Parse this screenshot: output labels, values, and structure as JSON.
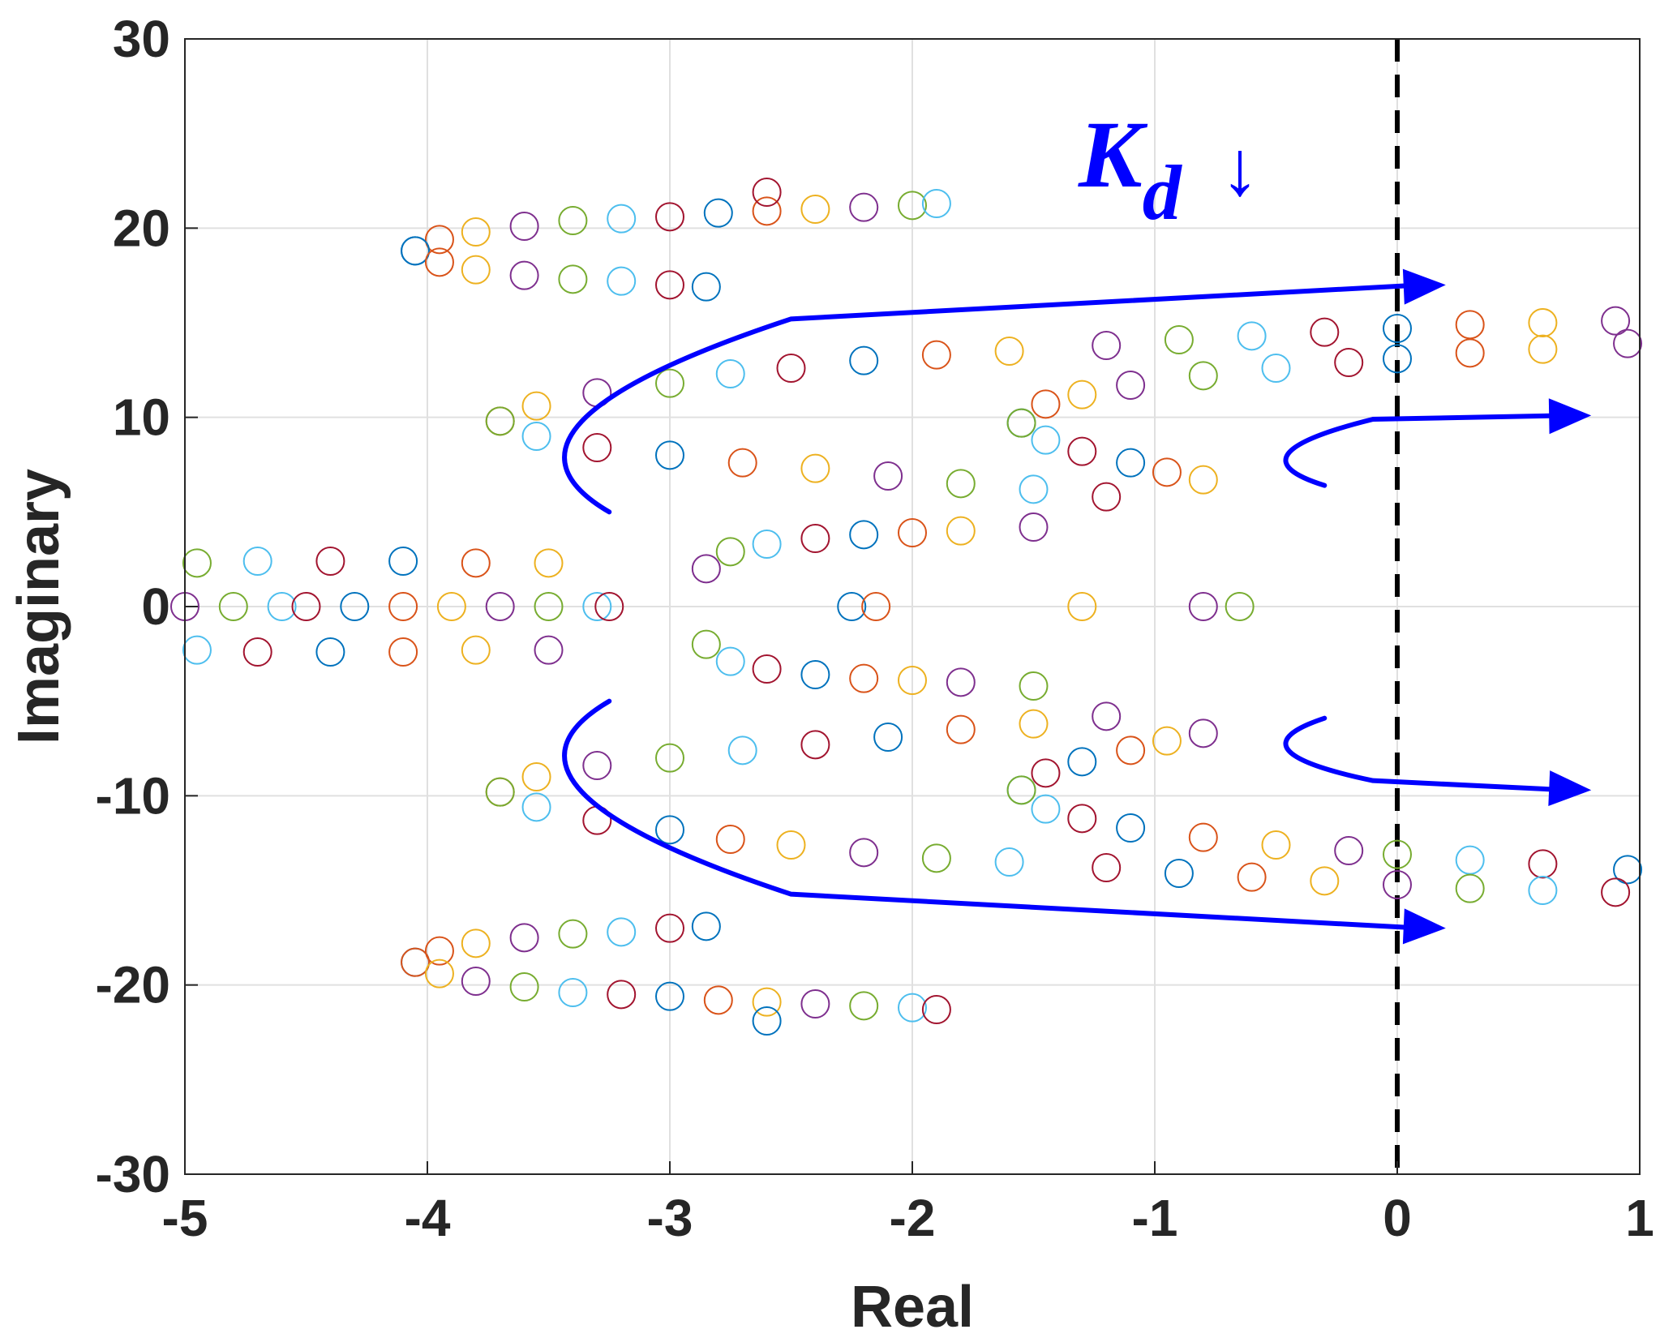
{
  "chart_data": {
    "type": "scatter",
    "title": "",
    "xlabel": "Real",
    "ylabel": "Imaginary",
    "xlim": [
      -5,
      1
    ],
    "ylim": [
      -30,
      30
    ],
    "xticks": [
      -5,
      -4,
      -3,
      -2,
      -1,
      0,
      1
    ],
    "xtick_labels": [
      "-5",
      "-4",
      "-3",
      "-2",
      "-1",
      "0",
      "1"
    ],
    "yticks": [
      -30,
      -20,
      -10,
      0,
      10,
      20,
      30
    ],
    "ytick_labels": [
      "-30",
      "-20",
      "-10",
      "0",
      "10",
      "20",
      "30"
    ],
    "grid": true,
    "legend": "none",
    "marker": "open-circle",
    "color_cycle": [
      "#0072BD",
      "#D95319",
      "#EDB120",
      "#7E2F8E",
      "#77AC30",
      "#4DBEEE",
      "#A2142F"
    ],
    "stability_boundary": {
      "x": 0,
      "style": "dashed",
      "color": "#000000"
    },
    "annotation": {
      "symbol": "K",
      "subscript": "d",
      "arrow": "↓",
      "color": "#0000ff"
    },
    "direction_arrows": {
      "color": "#0000ff",
      "paths": [
        {
          "points": [
            [
              -3.25,
              5
            ],
            [
              -3.85,
              9.5
            ],
            [
              -2.5,
              15.2
            ],
            [
              -0.5,
              16.6
            ],
            [
              0.2,
              17
            ]
          ]
        },
        {
          "points": [
            [
              -0.3,
              6.4
            ],
            [
              -0.7,
              8
            ],
            [
              -0.1,
              9.9
            ],
            [
              0.8,
              10.1
            ]
          ]
        },
        {
          "points": [
            [
              -3.25,
              -5
            ],
            [
              -3.85,
              -9.5
            ],
            [
              -2.5,
              -15.2
            ],
            [
              -0.5,
              -16.6
            ],
            [
              0.2,
              -17
            ]
          ]
        },
        {
          "points": [
            [
              -0.3,
              -5.9
            ],
            [
              -0.7,
              -7.6
            ],
            [
              -0.1,
              -9.2
            ],
            [
              0.8,
              -9.7
            ]
          ]
        }
      ]
    },
    "series": [
      {
        "branch": "upper-outer-top",
        "points": [
          [
            -4.05,
            18.8
          ],
          [
            -3.95,
            19.4
          ],
          [
            -3.8,
            19.8
          ],
          [
            -3.6,
            20.1
          ],
          [
            -3.4,
            20.4
          ],
          [
            -3.2,
            20.5
          ],
          [
            -3.0,
            20.6
          ],
          [
            -2.8,
            20.8
          ],
          [
            -2.6,
            20.9
          ],
          [
            -2.4,
            21.0
          ],
          [
            -2.2,
            21.1
          ],
          [
            -2.0,
            21.2
          ],
          [
            -1.9,
            21.3
          ],
          [
            -2.6,
            21.9
          ]
        ]
      },
      {
        "branch": "upper-outer-bottom",
        "points": [
          [
            -4.05,
            18.8
          ],
          [
            -3.95,
            18.2
          ],
          [
            -3.8,
            17.8
          ],
          [
            -3.6,
            17.5
          ],
          [
            -3.4,
            17.3
          ],
          [
            -3.2,
            17.2
          ],
          [
            -3.0,
            17.0
          ],
          [
            -2.85,
            16.9
          ]
        ]
      },
      {
        "branch": "upper-mid-top",
        "points": [
          [
            -3.7,
            9.8
          ],
          [
            -3.55,
            10.6
          ],
          [
            -3.3,
            11.3
          ],
          [
            -3.0,
            11.8
          ],
          [
            -2.75,
            12.3
          ],
          [
            -2.5,
            12.6
          ],
          [
            -2.2,
            13.0
          ],
          [
            -1.9,
            13.3
          ],
          [
            -1.6,
            13.5
          ],
          [
            -1.2,
            13.8
          ],
          [
            -0.9,
            14.1
          ],
          [
            -0.6,
            14.3
          ],
          [
            -0.3,
            14.5
          ],
          [
            0.0,
            14.7
          ],
          [
            0.3,
            14.9
          ],
          [
            0.6,
            15.0
          ],
          [
            0.9,
            15.1
          ]
        ]
      },
      {
        "branch": "upper-mid-bottom",
        "points": [
          [
            -3.7,
            9.8
          ],
          [
            -3.55,
            9.0
          ],
          [
            -3.3,
            8.4
          ],
          [
            -3.0,
            8.0
          ],
          [
            -2.7,
            7.6
          ],
          [
            -2.4,
            7.3
          ],
          [
            -2.1,
            6.9
          ],
          [
            -1.8,
            6.5
          ],
          [
            -1.5,
            6.2
          ],
          [
            -1.2,
            5.8
          ]
        ]
      },
      {
        "branch": "upper-inner-top",
        "points": [
          [
            -1.55,
            9.7
          ],
          [
            -1.45,
            10.7
          ],
          [
            -1.3,
            11.2
          ],
          [
            -1.1,
            11.7
          ],
          [
            -0.8,
            12.2
          ],
          [
            -0.5,
            12.6
          ],
          [
            -0.2,
            12.9
          ],
          [
            0.0,
            13.1
          ],
          [
            0.3,
            13.4
          ],
          [
            0.6,
            13.6
          ],
          [
            0.95,
            13.9
          ]
        ]
      },
      {
        "branch": "upper-inner-bottom",
        "points": [
          [
            -1.55,
            9.7
          ],
          [
            -1.45,
            8.8
          ],
          [
            -1.3,
            8.2
          ],
          [
            -1.1,
            7.6
          ],
          [
            -0.95,
            7.1
          ],
          [
            -0.8,
            6.7
          ]
        ]
      },
      {
        "branch": "upper-core",
        "points": [
          [
            -2.85,
            2.0
          ],
          [
            -2.75,
            2.9
          ],
          [
            -2.6,
            3.3
          ],
          [
            -2.4,
            3.6
          ],
          [
            -2.2,
            3.8
          ],
          [
            -2.0,
            3.9
          ],
          [
            -1.8,
            4.0
          ],
          [
            -1.5,
            4.2
          ]
        ]
      },
      {
        "branch": "upper-left-band",
        "points": [
          [
            -4.95,
            2.3
          ],
          [
            -4.7,
            2.4
          ],
          [
            -4.4,
            2.4
          ],
          [
            -4.1,
            2.4
          ],
          [
            -3.8,
            2.3
          ],
          [
            -3.5,
            2.3
          ]
        ]
      },
      {
        "branch": "real-axis",
        "points": [
          [
            -5.0,
            0
          ],
          [
            -4.8,
            0
          ],
          [
            -4.6,
            0
          ],
          [
            -4.5,
            0
          ],
          [
            -4.3,
            0
          ],
          [
            -4.1,
            0
          ],
          [
            -3.9,
            0
          ],
          [
            -3.7,
            0
          ],
          [
            -3.5,
            0
          ],
          [
            -3.3,
            0
          ],
          [
            -3.25,
            0
          ],
          [
            -2.25,
            0
          ],
          [
            -2.15,
            0
          ],
          [
            -1.3,
            0
          ],
          [
            -0.8,
            0
          ],
          [
            -0.65,
            0
          ]
        ]
      },
      {
        "branch": "lower-left-band",
        "points": [
          [
            -4.95,
            -2.3
          ],
          [
            -4.7,
            -2.4
          ],
          [
            -4.4,
            -2.4
          ],
          [
            -4.1,
            -2.4
          ],
          [
            -3.8,
            -2.3
          ],
          [
            -3.5,
            -2.3
          ]
        ]
      },
      {
        "branch": "lower-core",
        "points": [
          [
            -2.85,
            -2.0
          ],
          [
            -2.75,
            -2.9
          ],
          [
            -2.6,
            -3.3
          ],
          [
            -2.4,
            -3.6
          ],
          [
            -2.2,
            -3.8
          ],
          [
            -2.0,
            -3.9
          ],
          [
            -1.8,
            -4.0
          ],
          [
            -1.5,
            -4.2
          ]
        ]
      },
      {
        "branch": "lower-inner-top",
        "points": [
          [
            -1.55,
            -9.7
          ],
          [
            -1.45,
            -8.8
          ],
          [
            -1.3,
            -8.2
          ],
          [
            -1.1,
            -7.6
          ],
          [
            -0.95,
            -7.1
          ],
          [
            -0.8,
            -6.7
          ]
        ]
      },
      {
        "branch": "lower-inner-bottom",
        "points": [
          [
            -1.55,
            -9.7
          ],
          [
            -1.45,
            -10.7
          ],
          [
            -1.3,
            -11.2
          ],
          [
            -1.1,
            -11.7
          ],
          [
            -0.8,
            -12.2
          ],
          [
            -0.5,
            -12.6
          ],
          [
            -0.2,
            -12.9
          ],
          [
            0.0,
            -13.1
          ],
          [
            0.3,
            -13.4
          ],
          [
            0.6,
            -13.6
          ],
          [
            0.95,
            -13.9
          ]
        ]
      },
      {
        "branch": "lower-mid-top",
        "points": [
          [
            -3.7,
            -9.8
          ],
          [
            -3.55,
            -9.0
          ],
          [
            -3.3,
            -8.4
          ],
          [
            -3.0,
            -8.0
          ],
          [
            -2.7,
            -7.6
          ],
          [
            -2.4,
            -7.3
          ],
          [
            -2.1,
            -6.9
          ],
          [
            -1.8,
            -6.5
          ],
          [
            -1.5,
            -6.2
          ],
          [
            -1.2,
            -5.8
          ]
        ]
      },
      {
        "branch": "lower-mid-bottom",
        "points": [
          [
            -3.7,
            -9.8
          ],
          [
            -3.55,
            -10.6
          ],
          [
            -3.3,
            -11.3
          ],
          [
            -3.0,
            -11.8
          ],
          [
            -2.75,
            -12.3
          ],
          [
            -2.5,
            -12.6
          ],
          [
            -2.2,
            -13.0
          ],
          [
            -1.9,
            -13.3
          ],
          [
            -1.6,
            -13.5
          ],
          [
            -1.2,
            -13.8
          ],
          [
            -0.9,
            -14.1
          ],
          [
            -0.6,
            -14.3
          ],
          [
            -0.3,
            -14.5
          ],
          [
            0.0,
            -14.7
          ],
          [
            0.3,
            -14.9
          ],
          [
            0.6,
            -15.0
          ],
          [
            0.9,
            -15.1
          ]
        ]
      },
      {
        "branch": "lower-outer-top",
        "points": [
          [
            -4.05,
            -18.8
          ],
          [
            -3.95,
            -18.2
          ],
          [
            -3.8,
            -17.8
          ],
          [
            -3.6,
            -17.5
          ],
          [
            -3.4,
            -17.3
          ],
          [
            -3.2,
            -17.2
          ],
          [
            -3.0,
            -17.0
          ],
          [
            -2.85,
            -16.9
          ]
        ]
      },
      {
        "branch": "lower-outer-bottom",
        "points": [
          [
            -4.05,
            -18.8
          ],
          [
            -3.95,
            -19.4
          ],
          [
            -3.8,
            -19.8
          ],
          [
            -3.6,
            -20.1
          ],
          [
            -3.4,
            -20.4
          ],
          [
            -3.2,
            -20.5
          ],
          [
            -3.0,
            -20.6
          ],
          [
            -2.8,
            -20.8
          ],
          [
            -2.6,
            -20.9
          ],
          [
            -2.4,
            -21.0
          ],
          [
            -2.2,
            -21.1
          ],
          [
            -2.0,
            -21.2
          ],
          [
            -1.9,
            -21.3
          ],
          [
            -2.6,
            -21.9
          ]
        ]
      }
    ]
  }
}
